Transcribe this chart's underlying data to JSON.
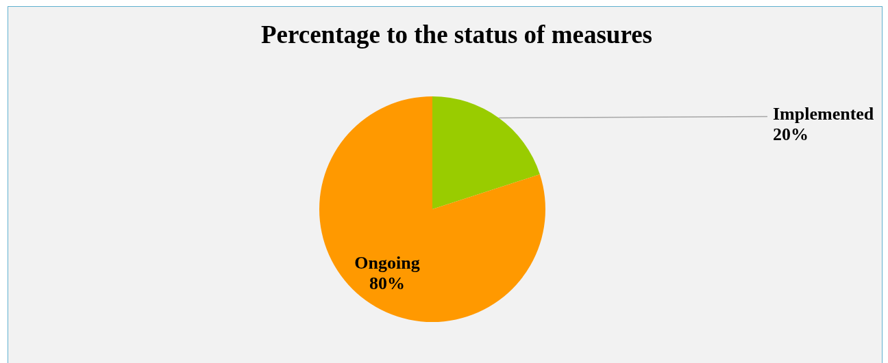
{
  "chart_data": {
    "type": "pie",
    "title": "Percentage to the status of measures",
    "categories": [
      "Implemented",
      "Ongoing"
    ],
    "values": [
      20,
      80
    ],
    "colors": [
      "#99cc00",
      "#ff9900"
    ],
    "value_labels": [
      "20%",
      "80%"
    ]
  }
}
